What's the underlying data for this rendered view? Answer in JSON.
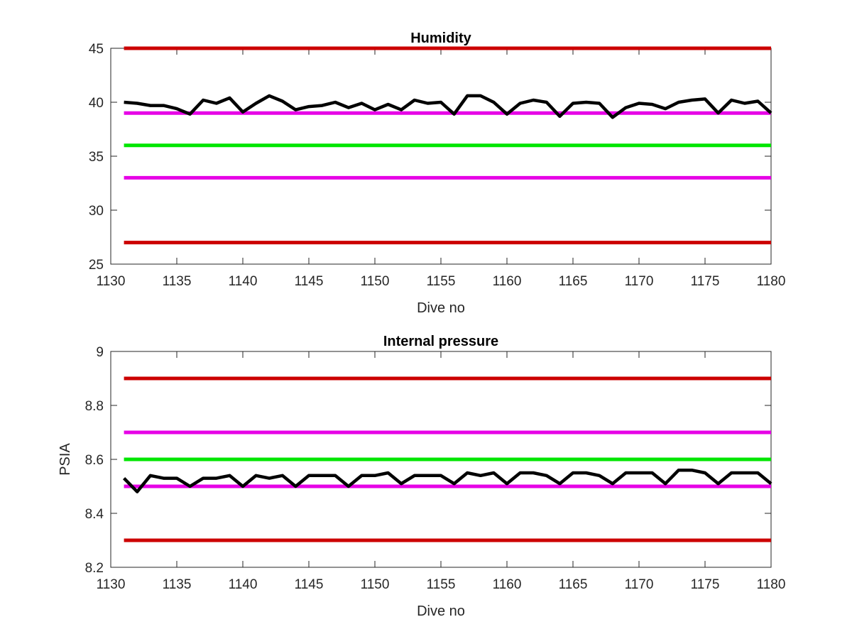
{
  "chart_data": [
    {
      "type": "line",
      "title": "Humidity",
      "xlabel": "Dive no",
      "ylabel": "",
      "xlim": [
        1130,
        1180
      ],
      "ylim": [
        25,
        45
      ],
      "xticks": [
        "1130",
        "1135",
        "1140",
        "1145",
        "1150",
        "1155",
        "1160",
        "1165",
        "1170",
        "1175",
        "1180"
      ],
      "yticks": [
        "25",
        "30",
        "35",
        "40",
        "45"
      ],
      "thresholds": [
        {
          "value": 45,
          "color": "#cc0000"
        },
        {
          "value": 39,
          "color": "#e600e6"
        },
        {
          "value": 36,
          "color": "#00e600"
        },
        {
          "value": 33,
          "color": "#e600e6"
        },
        {
          "value": 27,
          "color": "#cc0000"
        }
      ],
      "series": [
        {
          "color": "#000000",
          "x": [
            1131,
            1132,
            1133,
            1134,
            1135,
            1136,
            1137,
            1138,
            1139,
            1140,
            1141,
            1142,
            1143,
            1144,
            1145,
            1146,
            1147,
            1148,
            1149,
            1150,
            1151,
            1152,
            1153,
            1154,
            1155,
            1156,
            1157,
            1158,
            1159,
            1160,
            1161,
            1162,
            1163,
            1164,
            1165,
            1166,
            1167,
            1168,
            1169,
            1170,
            1171,
            1172,
            1173,
            1174,
            1175,
            1176,
            1177,
            1178,
            1179,
            1180
          ],
          "values": [
            40.0,
            39.9,
            39.7,
            39.7,
            39.4,
            38.9,
            40.2,
            39.9,
            40.4,
            39.1,
            39.9,
            40.6,
            40.1,
            39.3,
            39.6,
            39.7,
            40.0,
            39.5,
            39.9,
            39.3,
            39.8,
            39.3,
            40.2,
            39.9,
            40.0,
            38.9,
            40.6,
            40.6,
            40.0,
            38.9,
            39.9,
            40.2,
            40.0,
            38.7,
            39.9,
            40.0,
            39.9,
            38.6,
            39.5,
            39.9,
            39.8,
            39.4,
            40.0,
            40.2,
            40.3,
            39.0,
            40.2,
            39.9,
            40.1,
            39.0
          ]
        }
      ]
    },
    {
      "type": "line",
      "title": "Internal pressure",
      "xlabel": "Dive no",
      "ylabel": "PSIA",
      "xlim": [
        1130,
        1180
      ],
      "ylim": [
        8.2,
        9.0
      ],
      "xticks": [
        "1130",
        "1135",
        "1140",
        "1145",
        "1150",
        "1155",
        "1160",
        "1165",
        "1170",
        "1175",
        "1180"
      ],
      "yticks": [
        "8.2",
        "8.4",
        "8.6",
        "8.8",
        "9"
      ],
      "thresholds": [
        {
          "value": 8.9,
          "color": "#cc0000"
        },
        {
          "value": 8.7,
          "color": "#e600e6"
        },
        {
          "value": 8.6,
          "color": "#00e600"
        },
        {
          "value": 8.5,
          "color": "#e600e6"
        },
        {
          "value": 8.3,
          "color": "#cc0000"
        }
      ],
      "series": [
        {
          "color": "#000000",
          "x": [
            1131,
            1132,
            1133,
            1134,
            1135,
            1136,
            1137,
            1138,
            1139,
            1140,
            1141,
            1142,
            1143,
            1144,
            1145,
            1146,
            1147,
            1148,
            1149,
            1150,
            1151,
            1152,
            1153,
            1154,
            1155,
            1156,
            1157,
            1158,
            1159,
            1160,
            1161,
            1162,
            1163,
            1164,
            1165,
            1166,
            1167,
            1168,
            1169,
            1170,
            1171,
            1172,
            1173,
            1174,
            1175,
            1176,
            1177,
            1178,
            1179,
            1180
          ],
          "values": [
            8.53,
            8.48,
            8.54,
            8.53,
            8.53,
            8.5,
            8.53,
            8.53,
            8.54,
            8.5,
            8.54,
            8.53,
            8.54,
            8.5,
            8.54,
            8.54,
            8.54,
            8.5,
            8.54,
            8.54,
            8.55,
            8.51,
            8.54,
            8.54,
            8.54,
            8.51,
            8.55,
            8.54,
            8.55,
            8.51,
            8.55,
            8.55,
            8.54,
            8.51,
            8.55,
            8.55,
            8.54,
            8.51,
            8.55,
            8.55,
            8.55,
            8.51,
            8.56,
            8.56,
            8.55,
            8.51,
            8.55,
            8.55,
            8.55,
            8.51
          ]
        }
      ]
    }
  ]
}
